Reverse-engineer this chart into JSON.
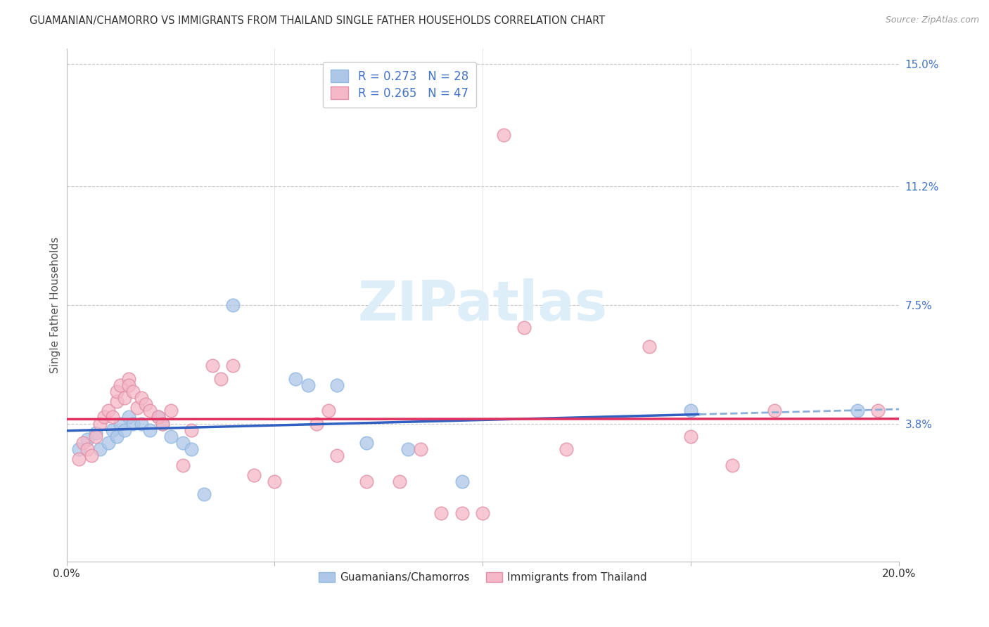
{
  "title": "GUAMANIAN/CHAMORRO VS IMMIGRANTS FROM THAILAND SINGLE FATHER HOUSEHOLDS CORRELATION CHART",
  "source": "Source: ZipAtlas.com",
  "ylabel": "Single Father Households",
  "xlabel": "",
  "xlim": [
    0.0,
    0.2
  ],
  "ylim": [
    -0.005,
    0.155
  ],
  "yticks": [
    0.038,
    0.075,
    0.112,
    0.15
  ],
  "ytick_labels": [
    "3.8%",
    "7.5%",
    "11.2%",
    "15.0%"
  ],
  "xticks": [
    0.0,
    0.05,
    0.1,
    0.15,
    0.2
  ],
  "xtick_labels": [
    "0.0%",
    "",
    "",
    "",
    "20.0%"
  ],
  "legend_label1": "Guamanians/Chamorros",
  "legend_label2": "Immigrants from Thailand",
  "R_blue": 0.273,
  "N_blue": 28,
  "R_pink": 0.265,
  "N_pink": 47,
  "blue_color": "#aec6e8",
  "pink_color": "#f5b8c8",
  "blue_line_color": "#3060c0",
  "pink_line_color": "#e03060",
  "blue_dash_color": "#8ab0d8",
  "watermark_color": "#ddeef8",
  "grid_color": "#c8c8c8",
  "right_tick_color": "#4472c4",
  "blue_scatter": [
    [
      0.003,
      0.03
    ],
    [
      0.005,
      0.033
    ],
    [
      0.007,
      0.035
    ],
    [
      0.008,
      0.03
    ],
    [
      0.01,
      0.032
    ],
    [
      0.011,
      0.036
    ],
    [
      0.012,
      0.034
    ],
    [
      0.013,
      0.038
    ],
    [
      0.014,
      0.036
    ],
    [
      0.015,
      0.04
    ],
    [
      0.016,
      0.038
    ],
    [
      0.018,
      0.038
    ],
    [
      0.02,
      0.036
    ],
    [
      0.022,
      0.04
    ],
    [
      0.023,
      0.038
    ],
    [
      0.025,
      0.034
    ],
    [
      0.028,
      0.032
    ],
    [
      0.03,
      0.03
    ],
    [
      0.033,
      0.016
    ],
    [
      0.04,
      0.075
    ],
    [
      0.055,
      0.052
    ],
    [
      0.058,
      0.05
    ],
    [
      0.065,
      0.05
    ],
    [
      0.072,
      0.032
    ],
    [
      0.082,
      0.03
    ],
    [
      0.095,
      0.02
    ],
    [
      0.15,
      0.042
    ],
    [
      0.19,
      0.042
    ]
  ],
  "pink_scatter": [
    [
      0.003,
      0.027
    ],
    [
      0.004,
      0.032
    ],
    [
      0.005,
      0.03
    ],
    [
      0.006,
      0.028
    ],
    [
      0.007,
      0.034
    ],
    [
      0.008,
      0.038
    ],
    [
      0.009,
      0.04
    ],
    [
      0.01,
      0.042
    ],
    [
      0.011,
      0.04
    ],
    [
      0.012,
      0.045
    ],
    [
      0.012,
      0.048
    ],
    [
      0.013,
      0.05
    ],
    [
      0.014,
      0.046
    ],
    [
      0.015,
      0.052
    ],
    [
      0.015,
      0.05
    ],
    [
      0.016,
      0.048
    ],
    [
      0.017,
      0.043
    ],
    [
      0.018,
      0.046
    ],
    [
      0.019,
      0.044
    ],
    [
      0.02,
      0.042
    ],
    [
      0.022,
      0.04
    ],
    [
      0.023,
      0.038
    ],
    [
      0.025,
      0.042
    ],
    [
      0.028,
      0.025
    ],
    [
      0.03,
      0.036
    ],
    [
      0.035,
      0.056
    ],
    [
      0.037,
      0.052
    ],
    [
      0.04,
      0.056
    ],
    [
      0.045,
      0.022
    ],
    [
      0.05,
      0.02
    ],
    [
      0.06,
      0.038
    ],
    [
      0.063,
      0.042
    ],
    [
      0.065,
      0.028
    ],
    [
      0.072,
      0.02
    ],
    [
      0.08,
      0.02
    ],
    [
      0.085,
      0.03
    ],
    [
      0.09,
      0.01
    ],
    [
      0.095,
      0.01
    ],
    [
      0.1,
      0.01
    ],
    [
      0.105,
      0.128
    ],
    [
      0.11,
      0.068
    ],
    [
      0.12,
      0.03
    ],
    [
      0.14,
      0.062
    ],
    [
      0.15,
      0.034
    ],
    [
      0.16,
      0.025
    ],
    [
      0.17,
      0.042
    ],
    [
      0.195,
      0.042
    ]
  ],
  "blue_line_xlim": [
    0.0,
    0.152
  ],
  "blue_dash_xlim": [
    0.152,
    0.2
  ]
}
